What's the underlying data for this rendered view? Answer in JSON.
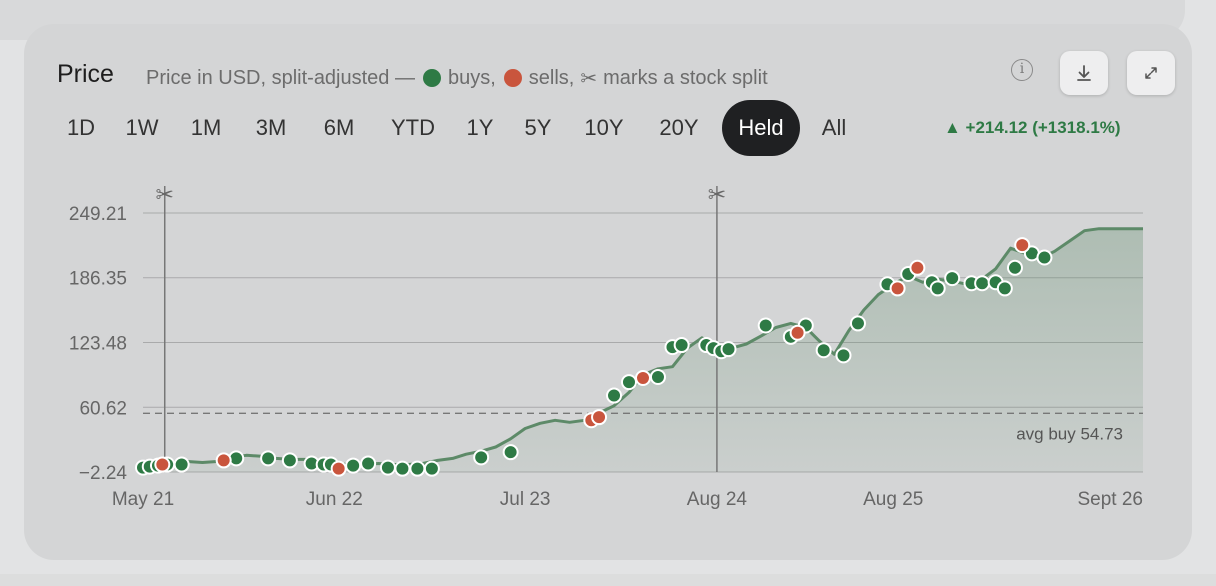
{
  "header": {
    "title": "Price",
    "subtitle_prefix": "Price in USD, split-adjusted —",
    "subtitle_buys": "buys,",
    "subtitle_sells": "sells,",
    "subtitle_split_glyph": "✂",
    "subtitle_split": "marks a stock split",
    "info_icon": "info-icon",
    "download_icon": "download-icon",
    "expand_icon": "expand-icon"
  },
  "ranges": [
    "1D",
    "1W",
    "1M",
    "3M",
    "6M",
    "YTD",
    "1Y",
    "5Y",
    "10Y",
    "20Y",
    "Held",
    "All"
  ],
  "active_range": "Held",
  "change_text": "▲ +214.12 (+1318.1%)",
  "colors": {
    "buy": "#2e7a45",
    "sell": "#c9553d",
    "line": "#5d8a68",
    "accent": "#2e7a45"
  },
  "chart_data": {
    "type": "line",
    "x_axis": {
      "type": "date",
      "min": "2021-05-01",
      "max": "2026-12-31",
      "tick_labels": [
        "May 21",
        "Jun 22",
        "Jul 23",
        "Aug 24",
        "Aug 25",
        "Sept 26"
      ],
      "tick_dates": [
        "2021-05-01",
        "2022-06-01",
        "2023-07-01",
        "2024-08-01",
        "2025-08-01",
        "2026-09-01"
      ]
    },
    "y_axis": {
      "min": -2.24,
      "max": 249.21,
      "ticks": [
        -2.24,
        60.62,
        123.48,
        186.35,
        249.21
      ]
    },
    "grid": true,
    "series": [
      {
        "values": [
          [
            "2021-05-01",
            3
          ],
          [
            "2021-06-01",
            5
          ],
          [
            "2021-07-01",
            6
          ],
          [
            "2021-08-01",
            8
          ],
          [
            "2021-09-01",
            7
          ],
          [
            "2021-10-01",
            8
          ],
          [
            "2021-11-01",
            12
          ],
          [
            "2021-12-01",
            14
          ],
          [
            "2022-01-01",
            13
          ],
          [
            "2022-02-01",
            11
          ],
          [
            "2022-03-01",
            10
          ],
          [
            "2022-04-01",
            10
          ],
          [
            "2022-05-01",
            8
          ],
          [
            "2022-06-01",
            6
          ],
          [
            "2022-07-01",
            5
          ],
          [
            "2022-08-01",
            5
          ],
          [
            "2022-09-01",
            6
          ],
          [
            "2022-10-01",
            5
          ],
          [
            "2022-11-01",
            5
          ],
          [
            "2022-12-01",
            6
          ],
          [
            "2023-01-01",
            9
          ],
          [
            "2023-02-01",
            11
          ],
          [
            "2023-03-01",
            15
          ],
          [
            "2023-04-01",
            18
          ],
          [
            "2023-05-01",
            22
          ],
          [
            "2023-06-01",
            30
          ],
          [
            "2023-07-01",
            40
          ],
          [
            "2023-08-01",
            45
          ],
          [
            "2023-09-01",
            48
          ],
          [
            "2023-10-01",
            46
          ],
          [
            "2023-11-01",
            48
          ],
          [
            "2023-12-01",
            55
          ],
          [
            "2024-01-01",
            62
          ],
          [
            "2024-02-01",
            75
          ],
          [
            "2024-03-01",
            92
          ],
          [
            "2024-04-01",
            98
          ],
          [
            "2024-05-01",
            100
          ],
          [
            "2024-06-01",
            118
          ],
          [
            "2024-07-01",
            128
          ],
          [
            "2024-08-01",
            120
          ],
          [
            "2024-09-01",
            118
          ],
          [
            "2024-10-01",
            122
          ],
          [
            "2024-11-01",
            130
          ],
          [
            "2024-12-01",
            138
          ],
          [
            "2025-01-01",
            142
          ],
          [
            "2025-02-01",
            138
          ],
          [
            "2025-03-01",
            125
          ],
          [
            "2025-04-01",
            112
          ],
          [
            "2025-05-01",
            135
          ],
          [
            "2025-06-01",
            155
          ],
          [
            "2025-07-01",
            170
          ],
          [
            "2025-08-01",
            180
          ],
          [
            "2025-09-01",
            188
          ],
          [
            "2025-10-01",
            182
          ],
          [
            "2025-11-01",
            185
          ],
          [
            "2025-12-01",
            183
          ],
          [
            "2026-01-01",
            180
          ],
          [
            "2026-02-01",
            185
          ],
          [
            "2026-03-01",
            195
          ],
          [
            "2026-04-01",
            215
          ],
          [
            "2026-05-01",
            210
          ],
          [
            "2026-06-01",
            205
          ],
          [
            "2026-07-01",
            212
          ],
          [
            "2026-08-01",
            222
          ],
          [
            "2026-09-01",
            232
          ],
          [
            "2026-10-01",
            234
          ],
          [
            "2026-12-31",
            234
          ]
        ]
      }
    ],
    "buys": [
      [
        "2021-05-01",
        2
      ],
      [
        "2021-05-15",
        3
      ],
      [
        "2021-06-01",
        4
      ],
      [
        "2021-06-20",
        5
      ],
      [
        "2021-07-20",
        5
      ],
      [
        "2021-11-10",
        11
      ],
      [
        "2022-01-15",
        11
      ],
      [
        "2022-03-01",
        9
      ],
      [
        "2022-04-15",
        6
      ],
      [
        "2022-05-10",
        5
      ],
      [
        "2022-05-25",
        5
      ],
      [
        "2022-07-10",
        4
      ],
      [
        "2022-08-10",
        6
      ],
      [
        "2022-09-20",
        2
      ],
      [
        "2022-10-20",
        1
      ],
      [
        "2022-11-20",
        1
      ],
      [
        "2022-12-20",
        1
      ],
      [
        "2023-04-01",
        12
      ],
      [
        "2023-06-01",
        17
      ],
      [
        "2024-01-01",
        72
      ],
      [
        "2024-02-01",
        85
      ],
      [
        "2024-04-01",
        90
      ],
      [
        "2024-05-01",
        119
      ],
      [
        "2024-05-20",
        121
      ],
      [
        "2024-07-10",
        121
      ],
      [
        "2024-07-25",
        118
      ],
      [
        "2024-08-10",
        115
      ],
      [
        "2024-08-25",
        117
      ],
      [
        "2024-11-10",
        140
      ],
      [
        "2025-01-01",
        129
      ],
      [
        "2025-02-01",
        140
      ],
      [
        "2025-03-10",
        116
      ],
      [
        "2025-04-20",
        111
      ],
      [
        "2025-05-20",
        142
      ],
      [
        "2025-07-20",
        180
      ],
      [
        "2025-09-01",
        190
      ],
      [
        "2025-10-20",
        182
      ],
      [
        "2025-11-01",
        176
      ],
      [
        "2025-12-01",
        186
      ],
      [
        "2026-01-10",
        181
      ],
      [
        "2026-02-01",
        181
      ],
      [
        "2026-03-01",
        182
      ],
      [
        "2026-03-20",
        176
      ],
      [
        "2026-04-10",
        196
      ],
      [
        "2026-05-15",
        210
      ],
      [
        "2026-06-10",
        206
      ]
    ],
    "sells": [
      [
        "2021-06-10",
        5
      ],
      [
        "2021-10-15",
        9
      ],
      [
        "2022-06-10",
        1
      ],
      [
        "2023-11-15",
        48
      ],
      [
        "2023-12-01",
        51
      ],
      [
        "2024-03-01",
        89
      ],
      [
        "2025-01-15",
        133
      ],
      [
        "2025-08-10",
        176
      ],
      [
        "2025-09-20",
        196
      ],
      [
        "2026-04-25",
        218
      ]
    ],
    "splits": [
      "2021-06-15",
      "2024-08-01"
    ],
    "reference_line": {
      "value": 54.73,
      "label": "avg buy 54.73"
    }
  }
}
